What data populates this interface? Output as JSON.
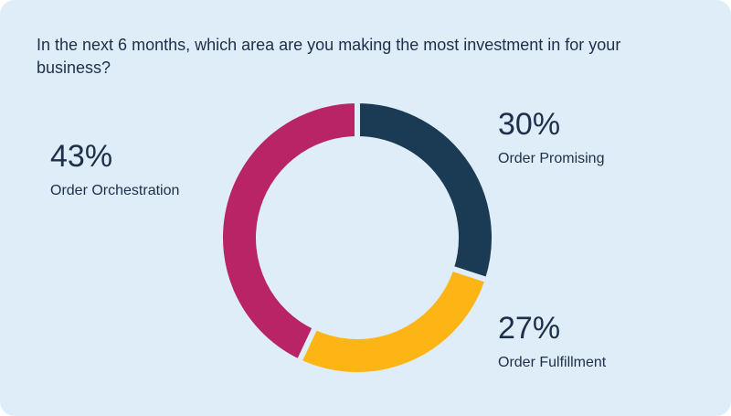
{
  "chart_data": {
    "type": "pie",
    "donut": true,
    "title": "In the next 6 months, which area are you making the most investment in for your business?",
    "categories": [
      "Order Promising",
      "Order Fulfillment",
      "Order Orchestration"
    ],
    "values": [
      30,
      27,
      43
    ],
    "value_labels": [
      "30%",
      "27%",
      "43%"
    ],
    "colors": [
      "#1b3a54",
      "#fdb515",
      "#b82466"
    ]
  }
}
